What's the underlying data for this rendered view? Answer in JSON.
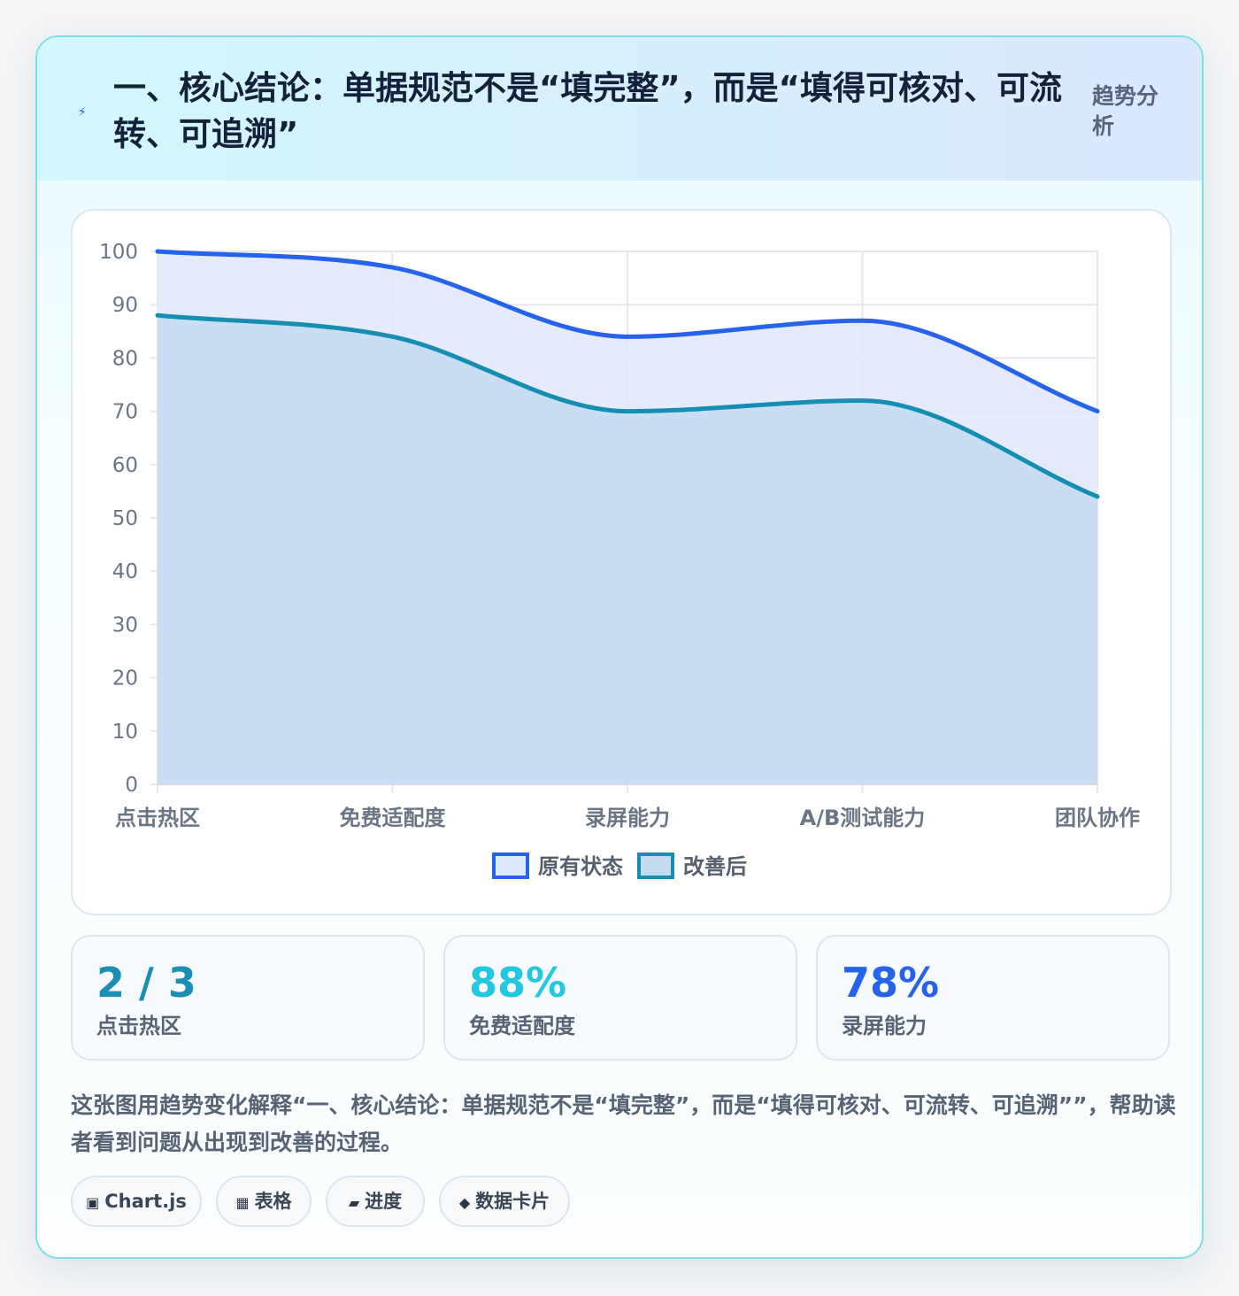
{
  "header": {
    "title": "一、核心结论：单据规范不是“填完整”，而是“填得可核对、可流转、可追溯”",
    "tag": "趋势分析",
    "icon": "lightning-icon"
  },
  "chart_data": {
    "type": "line",
    "fill": "area",
    "categories": [
      "点击热区",
      "免费适配度",
      "录屏能力",
      "A/B测试能力",
      "团队协作"
    ],
    "series": [
      {
        "name": "原有状态",
        "values": [
          100,
          97,
          84,
          87,
          70
        ],
        "color": "#2563eb",
        "fill": "#e0e8fb"
      },
      {
        "name": "改善后",
        "values": [
          88,
          84,
          70,
          72,
          54
        ],
        "color": "#168eb3",
        "fill": "#c4dcf0"
      }
    ],
    "ylim": [
      0,
      100
    ],
    "y_ticks": [
      0,
      10,
      20,
      30,
      40,
      50,
      60,
      70,
      80,
      90,
      100
    ],
    "grid": true,
    "legend": "bottom-center",
    "title": "",
    "xlabel": "",
    "ylabel": ""
  },
  "stats": [
    {
      "value": "2 / 3",
      "label": "点击热区",
      "color": "#1a8fb3"
    },
    {
      "value": "88%",
      "label": "免费适配度",
      "color": "#22c8e0"
    },
    {
      "value": "78%",
      "label": "录屏能力",
      "color": "#2563eb"
    }
  ],
  "description": "这张图用趋势变化解释“一、核心结论：单据规范不是“填完整”，而是“填得可核对、可流转、可追溯””，帮助读者看到问题从出现到改善的过程。",
  "chips": [
    {
      "icon": "▣",
      "icon_name": "chart-icon",
      "label": "Chart.js"
    },
    {
      "icon": "▦",
      "icon_name": "table-icon",
      "label": "表格"
    },
    {
      "icon": "▰",
      "icon_name": "progress-icon",
      "label": "进度"
    },
    {
      "icon": "◆",
      "icon_name": "diamond-icon",
      "label": "数据卡片"
    }
  ]
}
